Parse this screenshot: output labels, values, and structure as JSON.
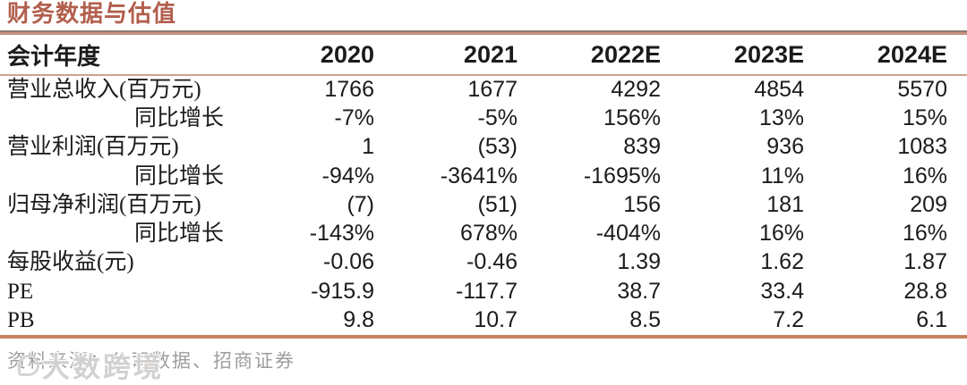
{
  "title": "财务数据与估值",
  "colors": {
    "accent_title": "#b25f4d",
    "rule_dark": "#8d7d76",
    "rule_brown": "#c6907e",
    "rule_bottom": "#c8815e",
    "header_underline": "#cfa191",
    "text": "#1b1b1b",
    "footer_text": "#9e9e9e",
    "watermark": "#d3d1cf"
  },
  "table": {
    "header": {
      "label": "会计年度",
      "years": [
        "2020",
        "2021",
        "2022E",
        "2023E",
        "2024E"
      ]
    },
    "rows": [
      {
        "label": "营业总收入(百万元)",
        "values": [
          "1766",
          "1677",
          "4292",
          "4854",
          "5570"
        ]
      },
      {
        "label": "同比增长",
        "values": [
          "-7%",
          "-5%",
          "156%",
          "13%",
          "15%"
        ]
      },
      {
        "label": "营业利润(百万元)",
        "values": [
          "1",
          "(53)",
          "839",
          "936",
          "1083"
        ]
      },
      {
        "label": "同比增长",
        "values": [
          "-94%",
          "-3641%",
          "-1695%",
          "11%",
          "16%"
        ]
      },
      {
        "label": "归母净利润(百万元)",
        "values": [
          "(7)",
          "(51)",
          "156",
          "181",
          "209"
        ]
      },
      {
        "label": "同比增长",
        "values": [
          "-143%",
          "678%",
          "-404%",
          "16%",
          "16%"
        ]
      },
      {
        "label": "每股收益(元)",
        "values": [
          "-0.06",
          "-0.46",
          "1.39",
          "1.62",
          "1.87"
        ]
      },
      {
        "label": "PE",
        "values": [
          "-915.9",
          "-117.7",
          "38.7",
          "33.4",
          "28.8"
        ]
      },
      {
        "label": "PB",
        "values": [
          "9.8",
          "10.7",
          "8.5",
          "7.2",
          "6.1"
        ]
      }
    ]
  },
  "footer": {
    "source": "资料来源：公司数据、招商证券"
  },
  "watermark": {
    "text": "大数跨境"
  },
  "chart_data": {
    "type": "table",
    "title": "财务数据与估值",
    "columns": [
      "会计年度",
      "2020",
      "2021",
      "2022E",
      "2023E",
      "2024E"
    ],
    "rows": [
      [
        "营业总收入(百万元)",
        "1766",
        "1677",
        "4292",
        "4854",
        "5570"
      ],
      [
        "同比增长",
        "-7%",
        "-5%",
        "156%",
        "13%",
        "15%"
      ],
      [
        "营业利润(百万元)",
        "1",
        "(53)",
        "839",
        "936",
        "1083"
      ],
      [
        "同比增长",
        "-94%",
        "-3641%",
        "-1695%",
        "11%",
        "16%"
      ],
      [
        "归母净利润(百万元)",
        "(7)",
        "(51)",
        "156",
        "181",
        "209"
      ],
      [
        "同比增长",
        "-143%",
        "678%",
        "-404%",
        "16%",
        "16%"
      ],
      [
        "每股收益(元)",
        "-0.06",
        "-0.46",
        "1.39",
        "1.62",
        "1.87"
      ],
      [
        "PE",
        "-915.9",
        "-117.7",
        "38.7",
        "33.4",
        "28.8"
      ],
      [
        "PB",
        "9.8",
        "10.7",
        "8.5",
        "7.2",
        "6.1"
      ]
    ],
    "source_note": "资料来源：公司数据、招商证券"
  }
}
